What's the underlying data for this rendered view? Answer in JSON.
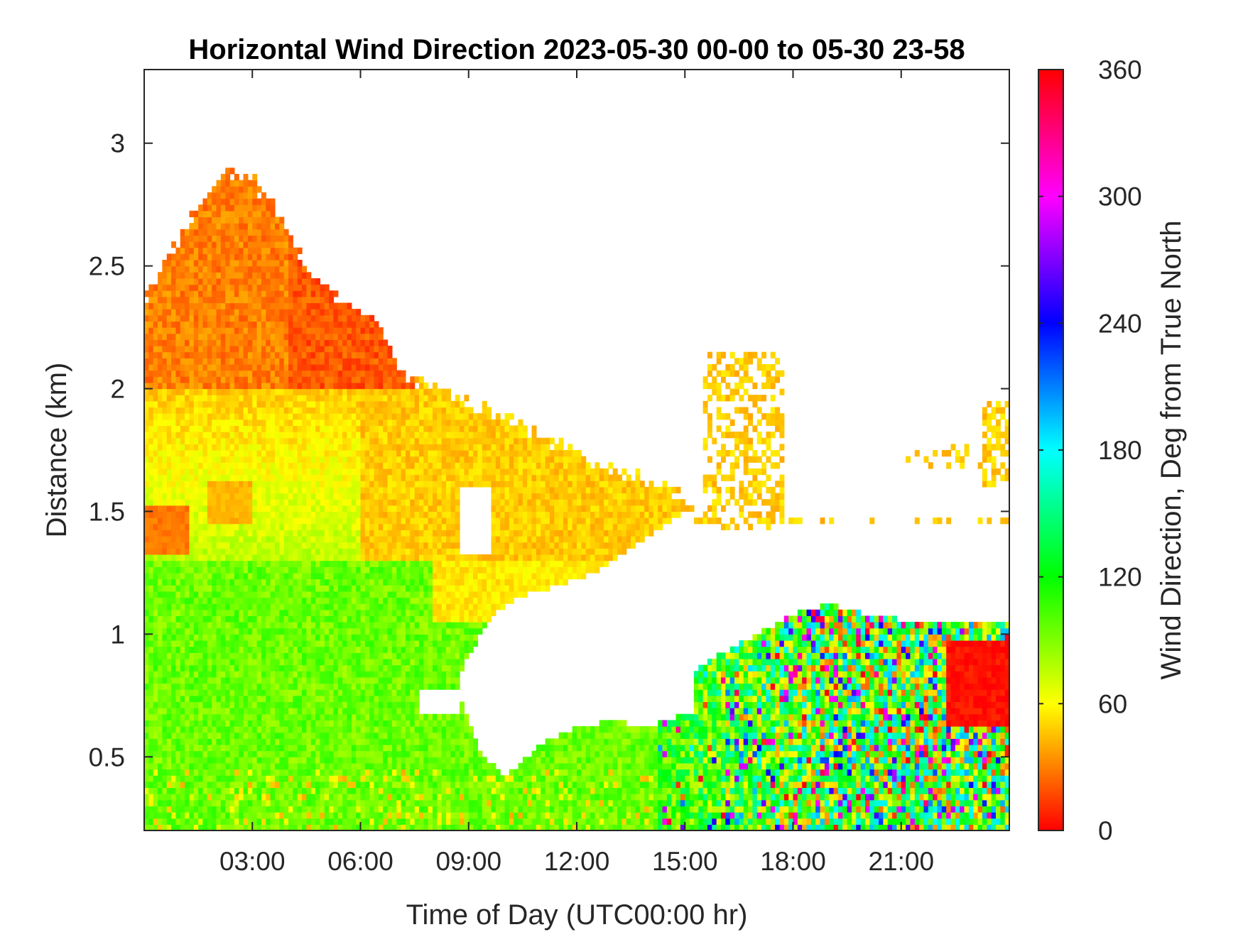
{
  "chart_data": {
    "type": "heatmap",
    "title": "Horizontal Wind Direction 2023-05-30 00-00 to 05-30 23-58",
    "xlabel": "Time of Day (UTC00:00 hr)",
    "ylabel": "Distance (km)",
    "x_unit": "hours",
    "xlim": [
      0,
      24
    ],
    "ylim": [
      0.2,
      3.3
    ],
    "x_ticks": [
      {
        "value": 3,
        "label": "03:00"
      },
      {
        "value": 6,
        "label": "06:00"
      },
      {
        "value": 9,
        "label": "09:00"
      },
      {
        "value": 12,
        "label": "12:00"
      },
      {
        "value": 15,
        "label": "15:00"
      },
      {
        "value": 18,
        "label": "18:00"
      },
      {
        "value": 21,
        "label": "21:00"
      }
    ],
    "y_ticks": [
      {
        "value": 0.5,
        "label": "0.5"
      },
      {
        "value": 1,
        "label": "1"
      },
      {
        "value": 1.5,
        "label": "1.5"
      },
      {
        "value": 2,
        "label": "2"
      },
      {
        "value": 2.5,
        "label": "2.5"
      },
      {
        "value": 3,
        "label": "3"
      }
    ],
    "grid": false,
    "colorbar": {
      "label": "Wind Direction, Deg from True North",
      "range": [
        0,
        360
      ],
      "ticks": [
        {
          "value": 0,
          "label": "0"
        },
        {
          "value": 60,
          "label": "60"
        },
        {
          "value": 120,
          "label": "120"
        },
        {
          "value": 180,
          "label": "180"
        },
        {
          "value": 240,
          "label": "240"
        },
        {
          "value": 300,
          "label": "300"
        },
        {
          "value": 360,
          "label": "360"
        }
      ],
      "colormap": "hsv",
      "colors": [
        "#ff0000",
        "#ffff00",
        "#00ff00",
        "#00ffff",
        "#0000ff",
        "#ff00ff",
        "#ff0000"
      ]
    },
    "regions": [
      {
        "desc": "low-level mixed layer",
        "x": [
          0,
          8
        ],
        "y": [
          0.2,
          1.3
        ],
        "direction_deg": 95
      },
      {
        "desc": "upper layer",
        "x": [
          0.5,
          6.5
        ],
        "y": [
          2.0,
          2.9
        ],
        "direction_deg": 30
      },
      {
        "desc": "mid layer",
        "x": [
          6,
          14.5
        ],
        "y": [
          1.3,
          2.0
        ],
        "direction_deg": 45
      },
      {
        "desc": "thin layer near 1.4 km",
        "x": [
          0,
          1.2
        ],
        "y": [
          1.3,
          1.55
        ],
        "direction_deg": 30
      },
      {
        "desc": "afternoon convective layer",
        "x": [
          14,
          24
        ],
        "y": [
          0.2,
          1.1
        ],
        "direction_deg": "mixed 0-360"
      },
      {
        "desc": "late evening layer",
        "x": [
          22.5,
          24
        ],
        "y": [
          0.65,
          1.0
        ],
        "direction_deg": 5
      }
    ]
  }
}
